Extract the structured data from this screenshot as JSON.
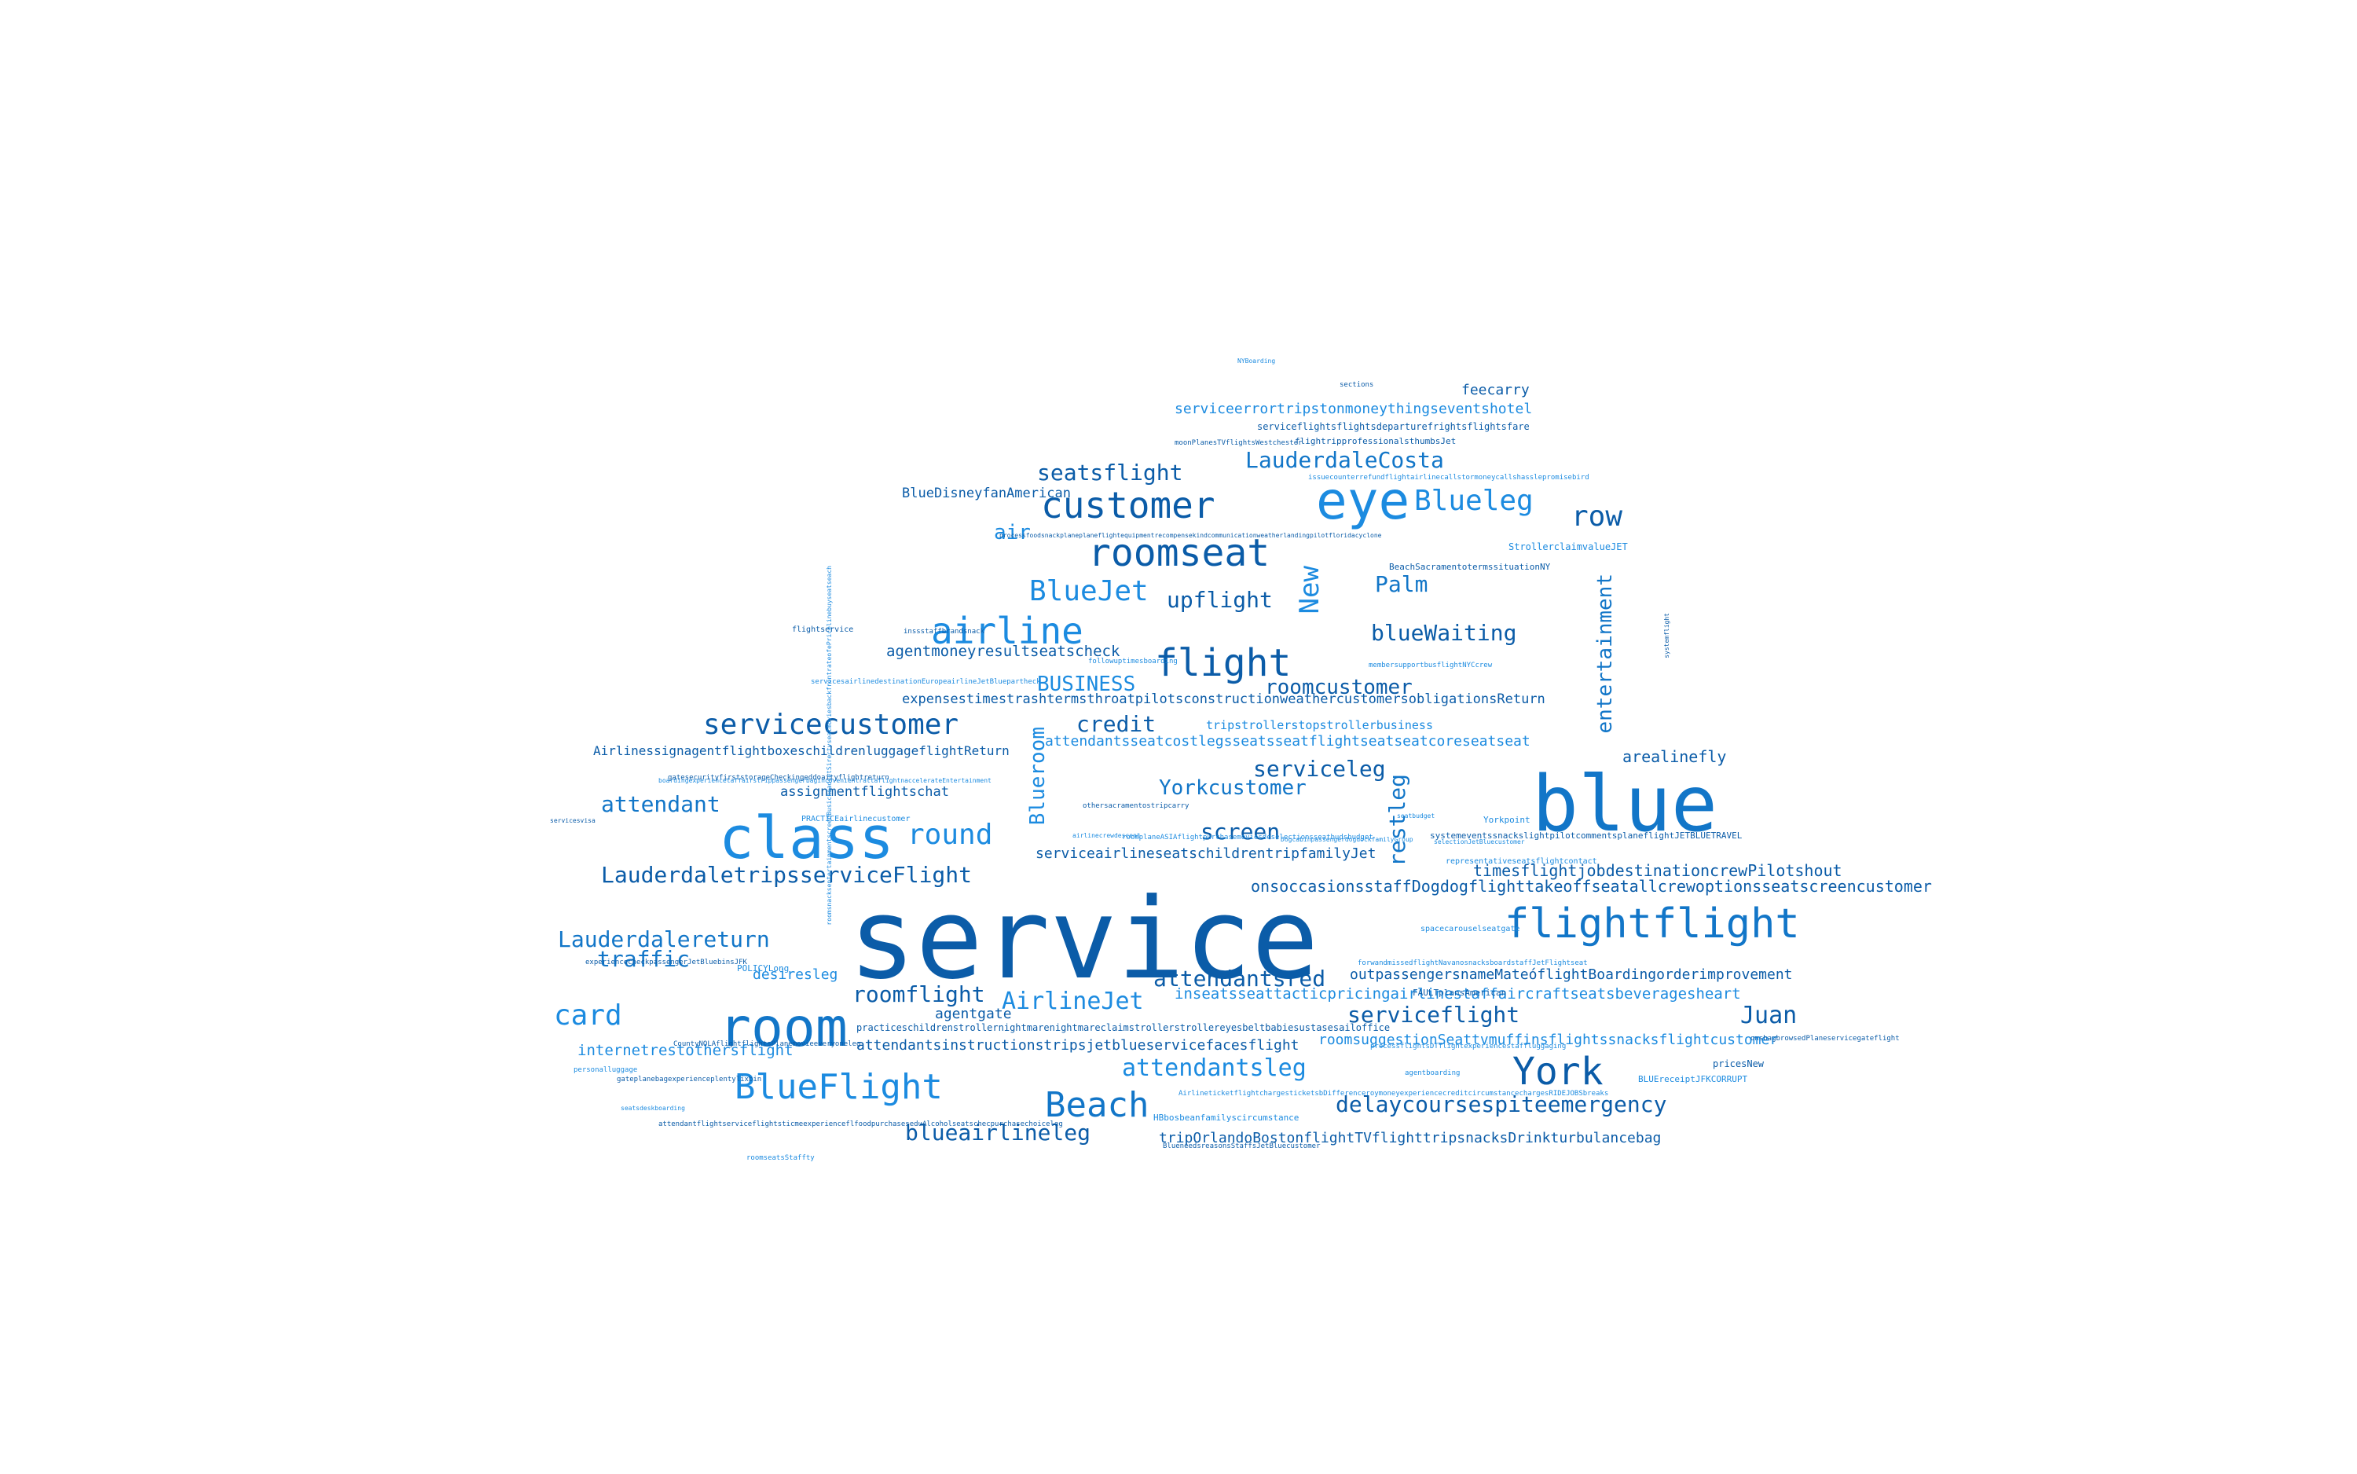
{
  "palette": {
    "dark": "#0B5CA8",
    "mid": "#1276C8",
    "light": "#1C8BE0"
  },
  "words": [
    {
      "text": "service",
      "tone": "dark"
    },
    {
      "text": "blue",
      "tone": "mid"
    },
    {
      "text": "class",
      "tone": "light"
    },
    {
      "text": "room",
      "tone": "mid"
    },
    {
      "text": "flightflight",
      "tone": "mid"
    },
    {
      "text": "eye",
      "tone": "light"
    },
    {
      "text": "customer",
      "tone": "dark"
    },
    {
      "text": "roomseat",
      "tone": "dark"
    },
    {
      "text": "airline",
      "tone": "light"
    },
    {
      "text": "flight",
      "tone": "dark"
    },
    {
      "text": "BlueFlight",
      "tone": "light"
    },
    {
      "text": "Beach",
      "tone": "mid"
    },
    {
      "text": "York",
      "tone": "dark"
    },
    {
      "text": "servicecustomer",
      "tone": "dark"
    },
    {
      "text": "BlueJet",
      "tone": "light"
    },
    {
      "text": "Blueleg",
      "tone": "light"
    },
    {
      "text": "round",
      "tone": "light"
    },
    {
      "text": "row",
      "tone": "dark"
    },
    {
      "text": "New",
      "tone": "light"
    },
    {
      "text": "LauderdaleCosta",
      "tone": "mid"
    },
    {
      "text": "seatsflight",
      "tone": "dark"
    },
    {
      "text": "Palm",
      "tone": "mid"
    },
    {
      "text": "upflight",
      "tone": "dark"
    },
    {
      "text": "blueWaiting",
      "tone": "dark"
    },
    {
      "text": "air",
      "tone": "light"
    },
    {
      "text": "entertainment",
      "tone": "mid"
    },
    {
      "text": "BUSINESS",
      "tone": "light"
    },
    {
      "text": "roomcustomer",
      "tone": "dark"
    },
    {
      "text": "credit",
      "tone": "dark"
    },
    {
      "text": "Blueroom",
      "tone": "light"
    },
    {
      "text": "restleg",
      "tone": "mid"
    },
    {
      "text": "attendant",
      "tone": "mid"
    },
    {
      "text": "Yorkcustomer",
      "tone": "mid"
    },
    {
      "text": "serviceleg",
      "tone": "dark"
    },
    {
      "text": "screen",
      "tone": "dark"
    },
    {
      "text": "arealinefly",
      "tone": "dark"
    },
    {
      "text": "LauderdaletripsserviceFlight",
      "tone": "dark"
    },
    {
      "text": "Lauderdalereturn",
      "tone": "mid"
    },
    {
      "text": "traffic",
      "tone": "mid"
    },
    {
      "text": "card",
      "tone": "light"
    },
    {
      "text": "roomflight",
      "tone": "dark"
    },
    {
      "text": "AirlineJet",
      "tone": "light"
    },
    {
      "text": "attendantsred",
      "tone": "dark"
    },
    {
      "text": "serviceflight",
      "tone": "dark"
    },
    {
      "text": "Juan",
      "tone": "dark"
    },
    {
      "text": "attendantsleg",
      "tone": "light"
    },
    {
      "text": "delaycoursespiteemergency",
      "tone": "dark"
    },
    {
      "text": "blueairlineleg",
      "tone": "dark"
    },
    {
      "text": "desiresleg",
      "tone": "light"
    },
    {
      "text": "internetrestothersflight",
      "tone": "light"
    },
    {
      "text": "agentmoneyresultseatscheck",
      "tone": "dark"
    },
    {
      "text": "expensestimestrashtermsthroatpilotsconstructionweathercustomersobligationsReturn",
      "tone": "dark"
    },
    {
      "text": "attendantsseatcostlegsseatsseatflightseatseatcoreseatseat",
      "tone": "light"
    },
    {
      "text": "AirlinessignagentflightboxeschildrenluggageflightReturn",
      "tone": "dark"
    },
    {
      "text": "assignmentflightschat",
      "tone": "dark"
    },
    {
      "text": "serviceairlineseatschildrentripfamilyJet",
      "tone": "dark"
    },
    {
      "text": "timesflightjobdestinationcrewPilotshout",
      "tone": "dark"
    },
    {
      "text": "onsoccasionsstaffDogdogflighttakeoffseatallcrewoptionsseatscreencustomer",
      "tone": "dark"
    },
    {
      "text": "outpassengersnameMateóflightBoardingorderimprovement",
      "tone": "dark"
    },
    {
      "text": "inseatsseattacticpricingairlinestaffaircraftseatsbeveragesheart",
      "tone": "light"
    },
    {
      "text": "roomsuggestionSeattvmuffinsflightssnacksflightcustomer",
      "tone": "light"
    },
    {
      "text": "attendantsinstructionstripsjetblueservicefacesflight",
      "tone": "dark"
    },
    {
      "text": "tripOrlandoBostonflightTVflighttripsnacksDrinkturbulancebag",
      "tone": "dark"
    },
    {
      "text": "serviceerrortripstonmoneythingseventshotel",
      "tone": "light"
    },
    {
      "text": "feecarry",
      "tone": "dark"
    },
    {
      "text": "BlueDisneyfanAmerican",
      "tone": "dark"
    },
    {
      "text": "agentgate",
      "tone": "dark"
    },
    {
      "text": "tripstrollerstopstrollerbusiness",
      "tone": "light"
    },
    {
      "text": "serviceflightsflightsdeparturefrightsflightsfare",
      "tone": "dark"
    },
    {
      "text": "flightripprofessionalsthumbsJet",
      "tone": "dark"
    },
    {
      "text": "StrollerclaimvalueJET",
      "tone": "light"
    },
    {
      "text": "systemeventssnackslightpilotcommentsplaneflightJETBLUETRAVEL",
      "tone": "dark"
    },
    {
      "text": "practiceschildrenstrollernightmarenightmareclaimstrollerstrollereyesbeltbabiesustasesailoffice",
      "tone": "dark"
    },
    {
      "text": "HBbosbeanfamilyscircumstance",
      "tone": "light"
    },
    {
      "text": "FAULTplansAmerican",
      "tone": "dark"
    },
    {
      "text": "POLICYLong",
      "tone": "light"
    },
    {
      "text": "PRACTICEairlinecustomer",
      "tone": "light"
    },
    {
      "text": "CountyNOLAflightflightsPlanemovieeveryoneleg",
      "tone": "dark"
    },
    {
      "text": "BLUEreceiptJFKCORRUPT",
      "tone": "light"
    },
    {
      "text": "pricesNew",
      "tone": "dark"
    },
    {
      "text": "Yorkpoint",
      "tone": "light"
    },
    {
      "text": "flightservice",
      "tone": "dark"
    },
    {
      "text": "gateplanebagexperienceplentylixbin",
      "tone": "dark"
    },
    {
      "text": "roomseatsStaffty",
      "tone": "light"
    },
    {
      "text": "spacecarouselseatgate",
      "tone": "light"
    },
    {
      "text": "representativeseatsflightcontact",
      "tone": "light"
    },
    {
      "text": "BeachSacramentotermssituationNY",
      "tone": "dark"
    },
    {
      "text": "followuptimesboarding",
      "tone": "light"
    },
    {
      "text": "membersupportbusflightNYCcrew",
      "tone": "light"
    },
    {
      "text": "moonPlanesTVflightsWestchester",
      "tone": "dark"
    },
    {
      "text": "issuecounterrefundflightairlinecallstormoneycallshasslepromisebird",
      "tone": "light"
    },
    {
      "text": "processfoodsnackplaneplaneflightequipmentrecompensekindcommunicationweatherlandingpilotfloridacyclone",
      "tone": "dark"
    },
    {
      "text": "servicesairlinedestinationEuropeairlineJetBluepartheck",
      "tone": "light"
    },
    {
      "text": "boardingexperiencetaffairstrippassengerbagincovenientrattaflightnaccelerateEntertainment",
      "tone": "light"
    },
    {
      "text": "experiencecheckpassengerJetBluebinsJFK",
      "tone": "dark"
    },
    {
      "text": "othersacramentostripcarry",
      "tone": "dark"
    },
    {
      "text": "AirlineticketflightchargesticketsbDifferenceroymoneyexperiencecreditcircumstancechargesRIDEJOBSbreaks",
      "tone": "light"
    },
    {
      "text": "inssstaffbrandsnack",
      "tone": "dark"
    },
    {
      "text": "gatesecurityfirststorageCheckingeddoaityflightreturn",
      "tone": "dark"
    },
    {
      "text": "forwandmissedflightNavanosnacksboardstaffJetFlightseat",
      "tone": "light"
    },
    {
      "text": "seatsdeskboarding",
      "tone": "light"
    },
    {
      "text": "roomplaneASIAflightpurchasemoviesdeselectionsseatbudsbudget",
      "tone": "light"
    },
    {
      "text": "selectionJetBluecustomer",
      "tone": "light"
    },
    {
      "text": "attendantflightserviceflightsticmeexperienceflfoodpurchaseseduAlcoholseatschecpurchasechoiceleg",
      "tone": "dark"
    },
    {
      "text": "processflightsDTflightexperiencestaffluggaging",
      "tone": "light"
    },
    {
      "text": "BlueneedsreasonsStaffsJetBluecustomer",
      "tone": "dark"
    },
    {
      "text": "roomsnacksentertainmentscreenBusicheadsetSirectvseatmoviesbackfrontrateofePricelinebuyseatseach",
      "tone": "light"
    },
    {
      "text": "agentboarding",
      "tone": "light"
    },
    {
      "text": "onsbagbrowsedPlaneservicegateflight",
      "tone": "dark"
    },
    {
      "text": "personalluggage",
      "tone": "light"
    },
    {
      "text": "servicesvisa",
      "tone": "dark"
    },
    {
      "text": "sections",
      "tone": "dark"
    },
    {
      "text": "systemflight",
      "tone": "dark"
    },
    {
      "text": "seatbudget",
      "tone": "light"
    },
    {
      "text": "DogcabinpassengerdogdockfamilyGroup",
      "tone": "light"
    },
    {
      "text": "airlinecrewdescent",
      "tone": "light"
    },
    {
      "text": "NYBoarding",
      "tone": "light"
    },
    {
      "text": "BlueBoardercrewflightgreenair",
      "tone": "light"
    }
  ]
}
